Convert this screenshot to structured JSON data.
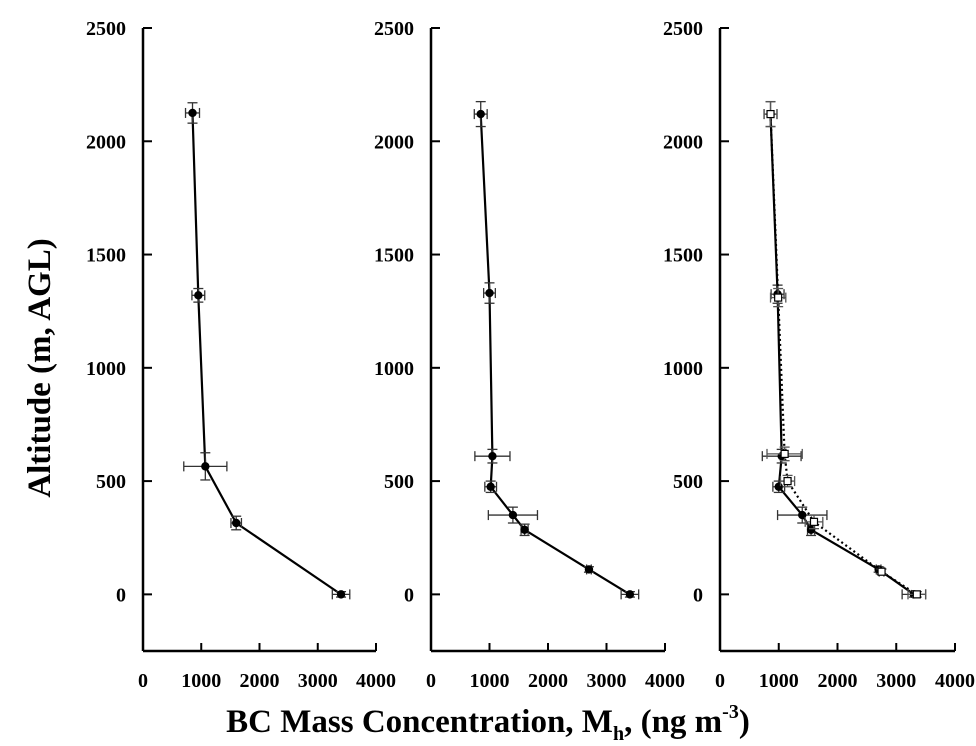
{
  "figure": {
    "ylabel": "Altitude (m, AGL)",
    "xlabel_main": "BC Mass Concentration, M",
    "xlabel_sub": "h",
    "xlabel_units_open": ", (ng m",
    "xlabel_units_sup": "-3",
    "xlabel_units_close": ")"
  },
  "chart_data": [
    {
      "type": "line",
      "xlim": [
        0,
        4000
      ],
      "ylim": [
        -250,
        2500
      ],
      "x_ticks": [
        "0",
        "1000",
        "2000",
        "3000",
        "4000"
      ],
      "y_ticks": [
        "0",
        "500",
        "1000",
        "1500",
        "2000",
        "2500"
      ],
      "grid": false,
      "series": [
        {
          "style": "solid",
          "color": "#000000",
          "points": [
            {
              "x": 850,
              "y": 2125,
              "xerr": 120,
              "yerr": 45
            },
            {
              "x": 950,
              "y": 1320,
              "xerr": 110,
              "yerr": 30
            },
            {
              "x": 1070,
              "y": 565,
              "xerr": 370,
              "yerr": 60
            },
            {
              "x": 1600,
              "y": 315,
              "xerr": 90,
              "yerr": 30
            },
            {
              "x": 3400,
              "y": 0,
              "xerr": 150,
              "yerr": 12
            }
          ]
        }
      ]
    },
    {
      "type": "line",
      "xlim": [
        0,
        4000
      ],
      "ylim": [
        -250,
        2500
      ],
      "x_ticks": [
        "0",
        "1000",
        "2000",
        "3000",
        "4000"
      ],
      "y_ticks": [
        "0",
        "500",
        "1000",
        "1500",
        "2000",
        "2500"
      ],
      "grid": false,
      "series": [
        {
          "style": "solid",
          "color": "#000000",
          "points": [
            {
              "x": 850,
              "y": 2120,
              "xerr": 110,
              "yerr": 55
            },
            {
              "x": 1000,
              "y": 1330,
              "xerr": 100,
              "yerr": 45
            },
            {
              "x": 1050,
              "y": 610,
              "xerr": 300,
              "yerr": 30
            },
            {
              "x": 1020,
              "y": 475,
              "xerr": 100,
              "yerr": 25
            },
            {
              "x": 1400,
              "y": 350,
              "xerr": 420,
              "yerr": 35
            },
            {
              "x": 1600,
              "y": 285,
              "xerr": 60,
              "yerr": 25
            },
            {
              "x": 2700,
              "y": 110,
              "xerr": 40,
              "yerr": 12
            },
            {
              "x": 3400,
              "y": 0,
              "xerr": 150,
              "yerr": 12
            }
          ]
        }
      ]
    },
    {
      "type": "line",
      "xlim": [
        0,
        4000
      ],
      "ylim": [
        -250,
        2500
      ],
      "x_ticks": [
        "0",
        "1000",
        "2000",
        "3000",
        "4000"
      ],
      "y_ticks": [
        "0",
        "500",
        "1000",
        "1500",
        "2000",
        "2500"
      ],
      "grid": false,
      "series": [
        {
          "style": "solid",
          "color": "#000000",
          "points": [
            {
              "x": 860,
              "y": 2120,
              "xerr": 110,
              "yerr": 55
            },
            {
              "x": 980,
              "y": 1325,
              "xerr": 110,
              "yerr": 40
            },
            {
              "x": 1050,
              "y": 610,
              "xerr": 330,
              "yerr": 30
            },
            {
              "x": 1000,
              "y": 475,
              "xerr": 100,
              "yerr": 25
            },
            {
              "x": 1400,
              "y": 350,
              "xerr": 420,
              "yerr": 35
            },
            {
              "x": 1550,
              "y": 285,
              "xerr": 60,
              "yerr": 25
            },
            {
              "x": 2700,
              "y": 110,
              "xerr": 40,
              "yerr": 12
            },
            {
              "x": 3300,
              "y": 0,
              "xerr": 200,
              "yerr": 12
            }
          ]
        },
        {
          "style": "dotted",
          "color": "#000000",
          "points": [
            {
              "x": 860,
              "y": 2120,
              "xerr": 110,
              "yerr": 55
            },
            {
              "x": 990,
              "y": 1310,
              "xerr": 130,
              "yerr": 40
            },
            {
              "x": 1100,
              "y": 620,
              "xerr": 300,
              "yerr": 30
            },
            {
              "x": 1150,
              "y": 500,
              "xerr": 120,
              "yerr": 25
            },
            {
              "x": 1600,
              "y": 320,
              "xerr": 150,
              "yerr": 30
            },
            {
              "x": 2750,
              "y": 100,
              "xerr": 40,
              "yerr": 12
            },
            {
              "x": 3350,
              "y": 0,
              "xerr": 150,
              "yerr": 12
            }
          ]
        }
      ]
    }
  ]
}
